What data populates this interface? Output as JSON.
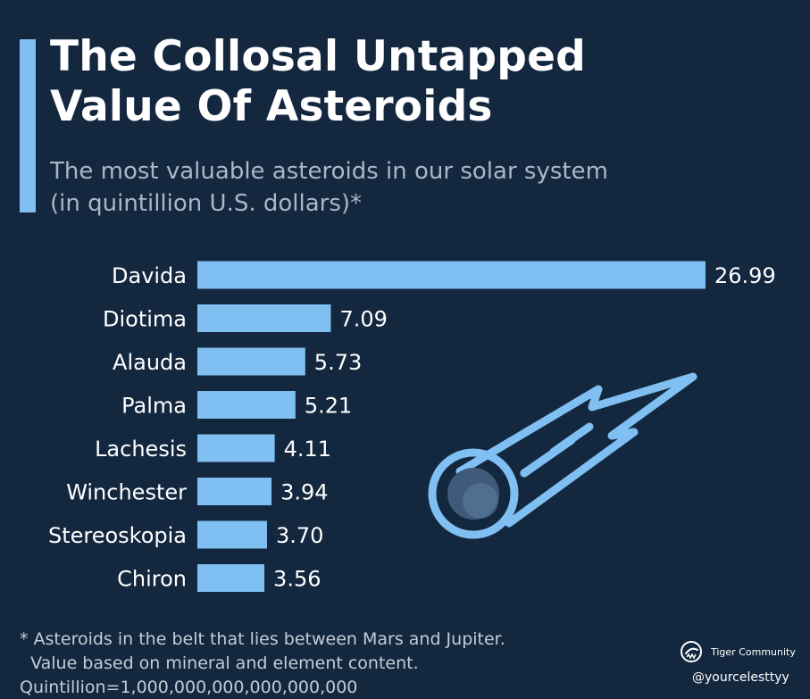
{
  "header": {
    "title_line1": "The Collosal Untapped",
    "title_line2": "Value Of Asteroids",
    "subtitle_line1": "The most valuable asteroids in our solar system",
    "subtitle_line2": "(in quintillion U.S. dollars)*"
  },
  "chart_data": {
    "type": "bar",
    "orientation": "horizontal",
    "categories": [
      "Davida",
      "Diotima",
      "Alauda",
      "Palma",
      "Lachesis",
      "Winchester",
      "Stereoskopia",
      "Chiron"
    ],
    "values": [
      26.99,
      7.09,
      5.73,
      5.21,
      4.11,
      3.94,
      3.7,
      3.56
    ],
    "value_labels": [
      "26.99",
      "7.09",
      "5.73",
      "5.21",
      "4.11",
      "3.94",
      "3.70",
      "3.56"
    ],
    "title": "The Collosal Untapped Value Of Asteroids",
    "xlabel": "",
    "ylabel": "",
    "xlim": [
      0,
      26.99
    ],
    "grid": false,
    "legend": "none"
  },
  "footnote": {
    "line1": "* Asteroids in the belt that lies between Mars and Jupiter.",
    "line2": "  Value based on mineral and element content.",
    "line3": "Quintillion=1,000,000,000,000,000,000"
  },
  "branding": {
    "logo_icon": "tiger-logo-icon",
    "name": "Tiger Community",
    "handle": "@yourcelesttyy"
  },
  "colors": {
    "background": "#13273f",
    "bar": "#7fbff2",
    "accent": "#7fbff2",
    "label": "#ffffff",
    "subtitle": "#a9b7c7"
  },
  "icons": {
    "decoration": "comet-icon"
  }
}
